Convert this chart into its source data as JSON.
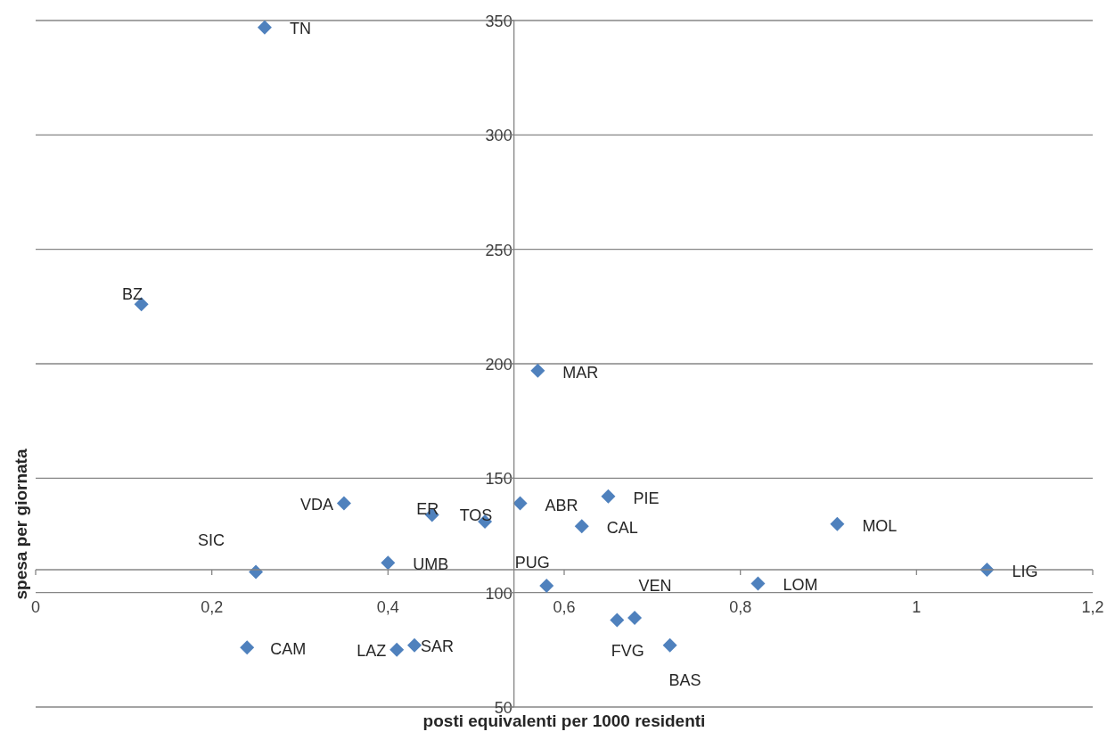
{
  "chart_data": {
    "type": "scatter",
    "xlabel": "posti equivalenti per 1000 residenti",
    "ylabel": "spesa per giornata",
    "x": [
      0.26,
      0.12,
      0.57,
      0.35,
      0.45,
      0.51,
      0.55,
      0.65,
      0.62,
      0.91,
      0.25,
      0.4,
      1.08,
      0.58,
      0.82,
      0.68,
      0.66,
      0.72,
      0.24,
      0.41,
      0.43
    ],
    "series": [
      {
        "color": "#4f81bd",
        "values": [
          347,
          226,
          197,
          139,
          134,
          131,
          139,
          142,
          129,
          130,
          109,
          113,
          110,
          103,
          104,
          89,
          88,
          77,
          76,
          75,
          77
        ]
      }
    ],
    "annotations": [
      {
        "text": "TN",
        "x": 0.26,
        "y": 347
      },
      {
        "text": "BZ",
        "x": 0.12,
        "y": 226
      },
      {
        "text": "MAR",
        "x": 0.57,
        "y": 197
      },
      {
        "text": "VDA",
        "x": 0.35,
        "y": 139
      },
      {
        "text": "ER",
        "x": 0.45,
        "y": 134
      },
      {
        "text": "TOS",
        "x": 0.51,
        "y": 131
      },
      {
        "text": "ABR",
        "x": 0.55,
        "y": 139
      },
      {
        "text": "PIE",
        "x": 0.65,
        "y": 142
      },
      {
        "text": "CAL",
        "x": 0.62,
        "y": 129
      },
      {
        "text": "MOL",
        "x": 0.91,
        "y": 130
      },
      {
        "text": "SIC",
        "x": 0.25,
        "y": 109
      },
      {
        "text": "UMB",
        "x": 0.4,
        "y": 113
      },
      {
        "text": "LIG",
        "x": 1.08,
        "y": 110
      },
      {
        "text": "PUG",
        "x": 0.58,
        "y": 103
      },
      {
        "text": "LOM",
        "x": 0.82,
        "y": 104
      },
      {
        "text": "VEN",
        "x": 0.68,
        "y": 89
      },
      {
        "text": "FVG",
        "x": 0.66,
        "y": 88
      },
      {
        "text": "BAS",
        "x": 0.72,
        "y": 77
      },
      {
        "text": "CAM",
        "x": 0.24,
        "y": 76
      },
      {
        "text": "LAZ",
        "x": 0.41,
        "y": 75
      },
      {
        "text": "SAR",
        "x": 0.43,
        "y": 77
      }
    ],
    "xlim": [
      0,
      1.2
    ],
    "xticks": [
      0,
      {
        "value": 0.2,
        "label": "0,2"
      },
      {
        "value": 0.4,
        "label": "0,4"
      },
      {
        "value": 0.6,
        "label": "0,6"
      },
      {
        "value": 0.8,
        "label": "0,8"
      },
      1,
      {
        "value": 1.2,
        "label": "1,2"
      }
    ],
    "ylim": [
      50,
      350
    ],
    "yticks": [
      50,
      100,
      150,
      200,
      250,
      300,
      350
    ],
    "grid": "y",
    "marker": "diamond",
    "legend": false
  }
}
